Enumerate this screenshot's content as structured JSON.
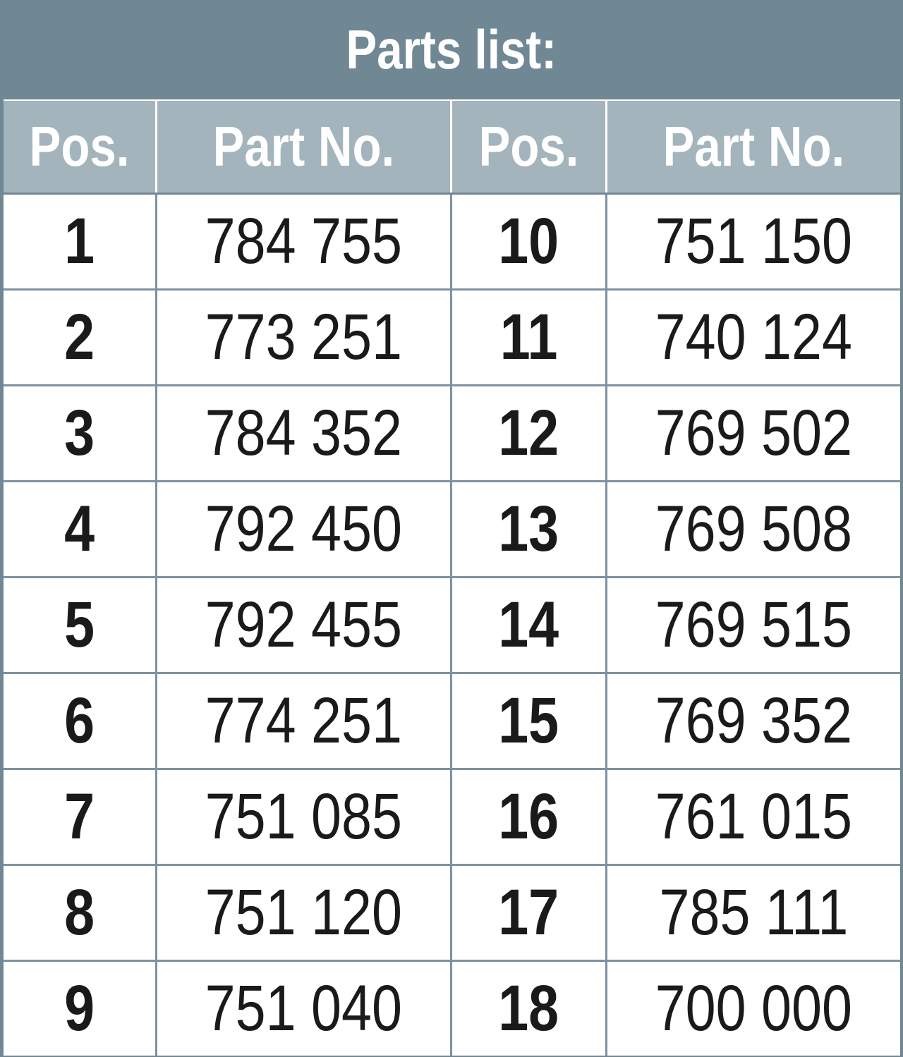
{
  "title": "Parts list:",
  "headers": [
    "Pos.",
    "Part No.",
    "Pos.",
    "Part No."
  ],
  "rows": [
    [
      "1",
      "784 755",
      "10",
      "751 150"
    ],
    [
      "2",
      "773 251",
      "11",
      "740 124"
    ],
    [
      "3",
      "784 352",
      "12",
      "769 502"
    ],
    [
      "4",
      "792 450",
      "13",
      "769 508"
    ],
    [
      "5",
      "792 455",
      "14",
      "769 515"
    ],
    [
      "6",
      "774 251",
      "15",
      "769 352"
    ],
    [
      "7",
      "751 085",
      "16",
      "761 015"
    ],
    [
      "8",
      "751 120",
      "17",
      "785 111"
    ],
    [
      "9",
      "751 040",
      "18",
      "700 000"
    ]
  ],
  "colors": {
    "frame": "#708894",
    "header": "#a4b4bd",
    "grid": "#7d929e"
  }
}
